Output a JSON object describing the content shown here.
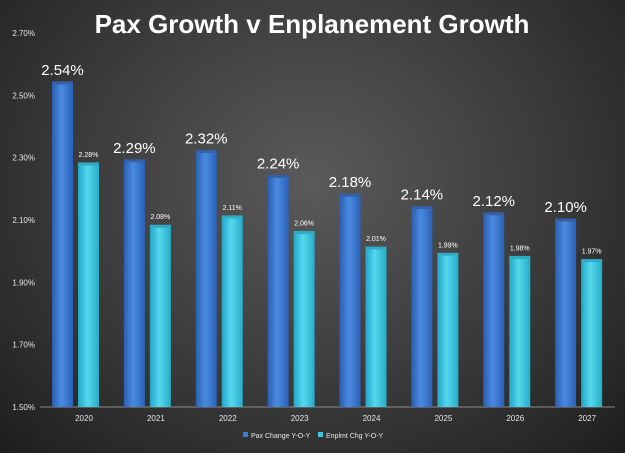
{
  "chart_data": {
    "type": "bar",
    "title": "Pax Growth v Enplanement Growth",
    "categories": [
      "2020",
      "2021",
      "2022",
      "2023",
      "2024",
      "2025",
      "2026",
      "2027"
    ],
    "series": [
      {
        "name": "Pax Change Y-O-Y",
        "values": [
          2.54,
          2.29,
          2.32,
          2.24,
          2.18,
          2.14,
          2.12,
          2.1
        ],
        "data_labels": [
          "2.54%",
          "2.29%",
          "2.32%",
          "2.24%",
          "2.18%",
          "2.14%",
          "2.12%",
          "2.10%"
        ]
      },
      {
        "name": "Enplmt Chg Y-O-Y",
        "values": [
          2.28,
          2.08,
          2.11,
          2.06,
          2.01,
          1.99,
          1.98,
          1.97
        ],
        "data_labels": [
          "2.28%",
          "2.08%",
          "2.11%",
          "2.06%",
          "2.01%",
          "1.99%",
          "1.98%",
          "1.97%"
        ]
      }
    ],
    "ylim": [
      1.5,
      2.7
    ],
    "y_ticks": [
      1.5,
      1.7,
      1.9,
      2.1,
      2.3,
      2.5,
      2.7
    ],
    "y_tick_labels": [
      "1.50%",
      "1.70%",
      "1.90%",
      "2.10%",
      "2.30%",
      "2.50%",
      "2.70%"
    ],
    "xlabel": "",
    "ylabel": "",
    "grid": false,
    "legend_position": "bottom",
    "colors": {
      "series_1": "#3a7bd5",
      "series_2": "#3cc8e0",
      "text": "#ffffff",
      "tick_text": "#e6e6e6"
    }
  }
}
